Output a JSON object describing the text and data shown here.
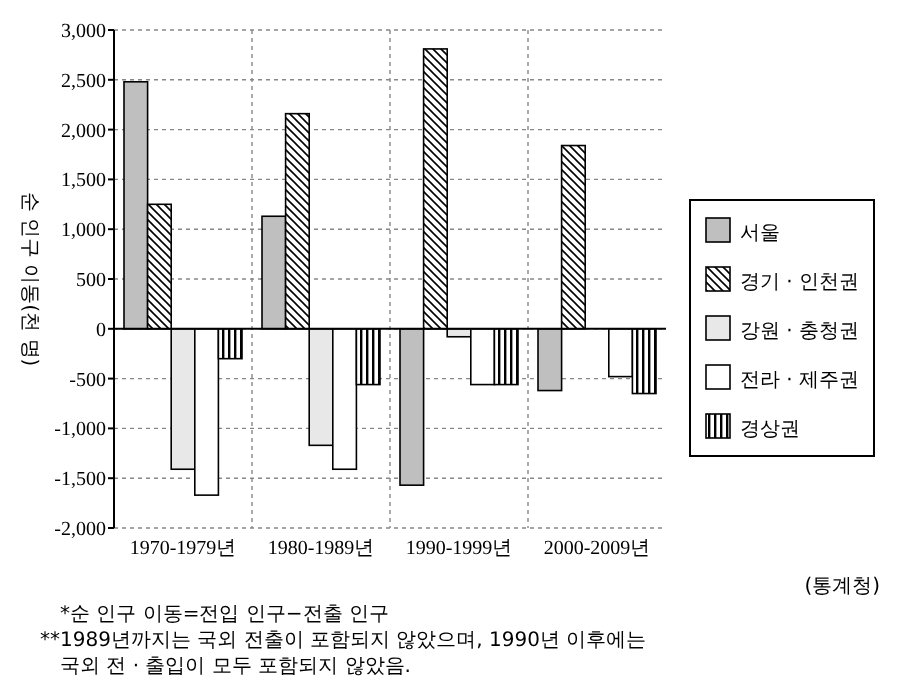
{
  "chart_data": {
    "type": "bar",
    "ylabel": "순 인구 이동(천 명)",
    "categories": [
      "1970-1979년",
      "1980-1989년",
      "1990-1999년",
      "2000-2009년"
    ],
    "series": [
      {
        "name": "서울",
        "color": "#bfbfbf",
        "values": [
          2480,
          1130,
          -1570,
          -620
        ]
      },
      {
        "name": "경기 · 인천권",
        "color": "#000000",
        "values": [
          1250,
          2160,
          2810,
          1840
        ]
      },
      {
        "name": "강원 · 충청권",
        "color": "#e8e8e8",
        "values": [
          -1410,
          -1170,
          -80,
          null
        ]
      },
      {
        "name": "전라 · 제주권",
        "color": "#ffffff",
        "values": [
          -1670,
          -1410,
          -560,
          -480
        ]
      },
      {
        "name": "경상권",
        "color": "#000000",
        "values": [
          -300,
          -560,
          -560,
          -650
        ]
      }
    ],
    "ylim": [
      -2000,
      3000
    ],
    "yticks": [
      {
        "value": -2000,
        "label": "-2,000"
      },
      {
        "value": -1500,
        "label": "-1,500"
      },
      {
        "value": -1000,
        "label": "-1,000"
      },
      {
        "value": -500,
        "label": "-500"
      },
      0,
      500,
      {
        "value": 1000,
        "label": "1,000"
      },
      {
        "value": 1500,
        "label": "1,500"
      },
      {
        "value": 2000,
        "label": "2,000"
      },
      {
        "value": 2500,
        "label": "2,500"
      },
      {
        "value": 3000,
        "label": "3,000"
      }
    ],
    "grid": true,
    "legend": "right",
    "annotations": [
      "(통계청)",
      "*순 인구 이동=전입 인구−전출 인구",
      "**1989년까지는 국외 전출이 포함되지 않았으며, 1990년 이후에는 국외 전 · 출입이 모두 포함되지 않았음."
    ]
  }
}
